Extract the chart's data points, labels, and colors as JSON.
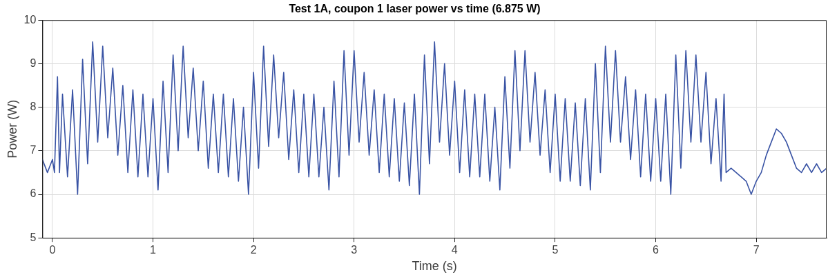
{
  "chart_data": {
    "type": "line",
    "title": "Test 1A, coupon 1 laser power vs time (6.875 W)",
    "xlabel": "Time (s)",
    "ylabel": "Power (W)",
    "xlim": [
      -0.1,
      7.7
    ],
    "xticks": [
      0,
      1,
      2,
      3,
      4,
      5,
      6,
      7
    ],
    "ylim": [
      5,
      10
    ],
    "yticks": [
      5,
      6,
      7,
      8,
      9,
      10
    ],
    "grid": true,
    "legend": false,
    "marker": "none",
    "line_style": "solid",
    "series": [
      {
        "color": "#3953a4",
        "x": [
          -0.1,
          -0.05,
          0,
          0.02,
          0.05,
          0.07,
          0.1,
          0.15,
          0.2,
          0.25,
          0.3,
          0.35,
          0.4,
          0.45,
          0.5,
          0.55,
          0.6,
          0.65,
          0.7,
          0.75,
          0.8,
          0.85,
          0.9,
          0.95,
          1.0,
          1.05,
          1.1,
          1.15,
          1.2,
          1.25,
          1.3,
          1.35,
          1.4,
          1.45,
          1.5,
          1.55,
          1.6,
          1.65,
          1.7,
          1.75,
          1.8,
          1.85,
          1.9,
          1.95,
          2.0,
          2.05,
          2.1,
          2.15,
          2.2,
          2.25,
          2.3,
          2.35,
          2.4,
          2.45,
          2.5,
          2.55,
          2.6,
          2.65,
          2.7,
          2.75,
          2.8,
          2.85,
          2.9,
          2.95,
          3.0,
          3.05,
          3.1,
          3.15,
          3.2,
          3.25,
          3.3,
          3.35,
          3.4,
          3.45,
          3.5,
          3.55,
          3.6,
          3.65,
          3.7,
          3.75,
          3.8,
          3.85,
          3.9,
          3.95,
          4.0,
          4.05,
          4.1,
          4.15,
          4.2,
          4.25,
          4.3,
          4.35,
          4.4,
          4.45,
          4.5,
          4.55,
          4.6,
          4.65,
          4.7,
          4.75,
          4.8,
          4.85,
          4.9,
          4.95,
          5.0,
          5.05,
          5.1,
          5.15,
          5.2,
          5.25,
          5.3,
          5.35,
          5.4,
          5.45,
          5.5,
          5.55,
          5.6,
          5.65,
          5.7,
          5.75,
          5.8,
          5.85,
          5.9,
          5.95,
          6.0,
          6.05,
          6.1,
          6.15,
          6.2,
          6.25,
          6.3,
          6.35,
          6.4,
          6.45,
          6.5,
          6.55,
          6.6,
          6.65,
          6.68,
          6.7,
          6.75,
          6.8,
          6.85,
          6.9,
          6.95,
          7.0,
          7.05,
          7.1,
          7.15,
          7.2,
          7.25,
          7.3,
          7.35,
          7.4,
          7.45,
          7.5,
          7.55,
          7.6,
          7.65,
          7.7
        ],
        "values": [
          6.8,
          6.5,
          6.8,
          6.5,
          8.7,
          6.5,
          8.3,
          6.4,
          8.4,
          6.0,
          9.1,
          6.7,
          9.5,
          7.2,
          9.4,
          7.3,
          8.9,
          6.9,
          8.5,
          6.5,
          8.4,
          6.4,
          8.3,
          6.4,
          8.2,
          6.1,
          8.6,
          6.5,
          9.2,
          7.0,
          9.4,
          7.3,
          8.9,
          7.0,
          8.6,
          6.6,
          8.3,
          6.5,
          8.3,
          6.4,
          8.2,
          6.3,
          8.0,
          6.0,
          8.8,
          6.6,
          9.4,
          7.1,
          9.2,
          7.3,
          8.8,
          6.8,
          8.4,
          6.5,
          8.3,
          6.4,
          8.3,
          6.4,
          8.0,
          6.1,
          8.6,
          6.4,
          9.3,
          6.9,
          9.3,
          7.2,
          8.8,
          6.9,
          8.4,
          6.5,
          8.3,
          6.4,
          8.2,
          6.3,
          8.1,
          6.2,
          8.3,
          6.0,
          9.2,
          6.7,
          9.5,
          7.2,
          9.0,
          6.9,
          8.6,
          6.5,
          8.4,
          6.4,
          8.3,
          6.4,
          8.3,
          6.3,
          8.0,
          6.1,
          8.7,
          6.6,
          9.3,
          7.0,
          9.3,
          7.2,
          8.8,
          6.9,
          8.4,
          6.5,
          8.3,
          6.3,
          8.2,
          6.3,
          8.1,
          6.2,
          8.2,
          6.1,
          9.0,
          6.5,
          9.4,
          7.2,
          9.3,
          7.2,
          8.7,
          6.8,
          8.4,
          6.4,
          8.3,
          6.3,
          8.2,
          6.3,
          8.3,
          6.0,
          9.2,
          6.6,
          9.3,
          7.2,
          9.2,
          7.2,
          8.8,
          6.7,
          8.2,
          6.3,
          8.3,
          6.5,
          6.6,
          6.5,
          6.4,
          6.3,
          6.0,
          6.3,
          6.5,
          6.9,
          7.2,
          7.5,
          7.4,
          7.2,
          6.9,
          6.6,
          6.5,
          6.7,
          6.5,
          6.7,
          6.5,
          6.6
        ]
      }
    ]
  }
}
